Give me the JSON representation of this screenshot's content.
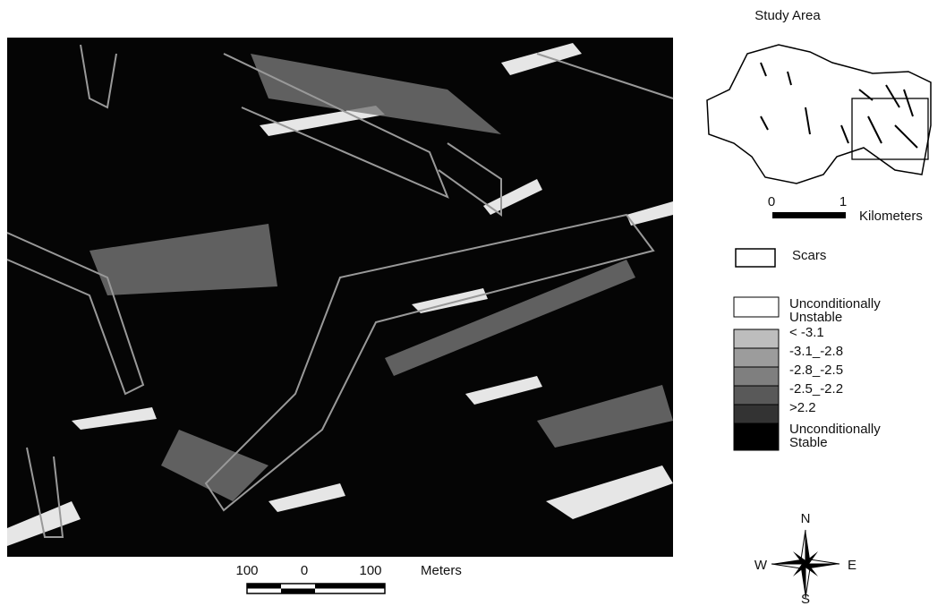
{
  "map": {
    "scale_bar": {
      "labels": [
        "100",
        "0",
        "100"
      ],
      "unit": "Meters"
    }
  },
  "inset": {
    "title": "Study Area",
    "scale_labels": [
      "0",
      "1"
    ],
    "unit": "Kilometers"
  },
  "legend": {
    "scars": "Scars",
    "classes": [
      {
        "label": "Unconditionally Unstable",
        "color": "#ffffff"
      },
      {
        "label": "< -3.1",
        "color": "#bdbdbd"
      },
      {
        "label": "-3.1_-2.8",
        "color": "#9c9c9c"
      },
      {
        "label": "-2.8_-2.5",
        "color": "#7f7f7f"
      },
      {
        "label": "-2.5_-2.2",
        "color": "#595959"
      },
      {
        "label": ">2.2",
        "color": "#333333"
      },
      {
        "label": "Unconditionally Stable",
        "color": "#000000"
      }
    ]
  },
  "compass": {
    "n": "N",
    "w": "W",
    "e": "E",
    "s": "S"
  }
}
